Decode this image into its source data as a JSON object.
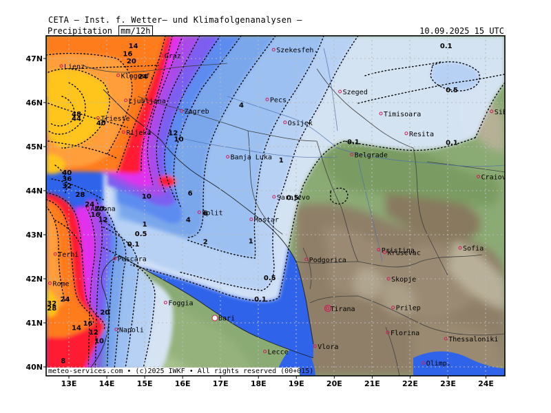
{
  "header": "CETA — Inst. f. Wetter— und Klimafolgenanalysen —",
  "title": {
    "variable": "Precipitation",
    "unit": "mm/12h",
    "valid": "10.09.2025  15 UTC"
  },
  "footer": "meteo-services.com • (c)2025 IWKF • All rights reserved  (00+015)",
  "axes": {
    "lon": [
      "13E",
      "14E",
      "15E",
      "16E",
      "17E",
      "18E",
      "19E",
      "20E",
      "21E",
      "22E",
      "23E",
      "24E"
    ],
    "lat": [
      "47N",
      "46N",
      "45N",
      "44N",
      "43N",
      "42N",
      "41N",
      "40N"
    ]
  },
  "cities": [
    {
      "name": "Szekesfeh.",
      "lon": 18.4,
      "lat": 47.2
    },
    {
      "name": "Szeged",
      "lon": 20.15,
      "lat": 46.25
    },
    {
      "name": "Graz",
      "lon": 15.45,
      "lat": 47.07
    },
    {
      "name": "Lienz",
      "lon": 12.8,
      "lat": 46.83
    },
    {
      "name": "Klagenf.",
      "lon": 14.3,
      "lat": 46.62
    },
    {
      "name": "Ljubljana",
      "lon": 14.5,
      "lat": 46.05
    },
    {
      "name": "Zagreb",
      "lon": 15.97,
      "lat": 45.81
    },
    {
      "name": "Pecs",
      "lon": 18.23,
      "lat": 46.07
    },
    {
      "name": "Timisoara",
      "lon": 21.23,
      "lat": 45.75
    },
    {
      "name": "Sibiu",
      "lon": 24.15,
      "lat": 45.8
    },
    {
      "name": "Trieste",
      "lon": 13.77,
      "lat": 45.65
    },
    {
      "name": "Rijeka",
      "lon": 14.44,
      "lat": 45.33
    },
    {
      "name": "Osijek",
      "lon": 18.7,
      "lat": 45.55
    },
    {
      "name": "Resita",
      "lon": 21.9,
      "lat": 45.3
    },
    {
      "name": "Banja Luka",
      "lon": 17.19,
      "lat": 44.77
    },
    {
      "name": "Belgrade",
      "lon": 20.46,
      "lat": 44.82
    },
    {
      "name": "Craiova",
      "lon": 23.8,
      "lat": 44.32
    },
    {
      "name": "Sarajevo",
      "lon": 18.41,
      "lat": 43.86
    },
    {
      "name": "Ancona",
      "lon": 13.5,
      "lat": 43.6
    },
    {
      "name": "Split",
      "lon": 16.44,
      "lat": 43.51
    },
    {
      "name": "Mostar",
      "lon": 17.81,
      "lat": 43.35
    },
    {
      "name": "Krusevac",
      "lon": 21.33,
      "lat": 42.6
    },
    {
      "name": "Pristina",
      "lon": 21.17,
      "lat": 42.66
    },
    {
      "name": "Sofia",
      "lon": 23.32,
      "lat": 42.7
    },
    {
      "name": "Terni",
      "lon": 12.64,
      "lat": 42.56
    },
    {
      "name": "Pescara",
      "lon": 14.21,
      "lat": 42.46
    },
    {
      "name": "Podgorica",
      "lon": 19.26,
      "lat": 42.44
    },
    {
      "name": "Skopje",
      "lon": 21.43,
      "lat": 42.0
    },
    {
      "name": "Rome",
      "lon": 12.5,
      "lat": 41.9
    },
    {
      "name": "Foggia",
      "lon": 15.55,
      "lat": 41.46
    },
    {
      "name": "Tirana",
      "lon": 19.82,
      "lat": 41.33
    },
    {
      "name": "Prilep",
      "lon": 21.55,
      "lat": 41.35
    },
    {
      "name": "Bari",
      "lon": 16.87,
      "lat": 41.12
    },
    {
      "name": "Napoli",
      "lon": 14.25,
      "lat": 40.85
    },
    {
      "name": "Florina",
      "lon": 21.41,
      "lat": 40.78
    },
    {
      "name": "Thessaloniki",
      "lon": 22.94,
      "lat": 40.64
    },
    {
      "name": "Vlora",
      "lon": 19.49,
      "lat": 40.47
    },
    {
      "name": "Lecce",
      "lon": 18.17,
      "lat": 40.35
    },
    {
      "name": "Olimp.",
      "lon": 22.35,
      "lat": 40.09
    }
  ],
  "contour_labels": [
    {
      "text": "14",
      "lon": 14.7,
      "lat": 47.3
    },
    {
      "text": "16",
      "lon": 14.55,
      "lat": 47.12
    },
    {
      "text": "20",
      "lon": 14.65,
      "lat": 46.95
    },
    {
      "text": "24",
      "lon": 14.95,
      "lat": 46.6
    },
    {
      "text": "48",
      "lon": 13.2,
      "lat": 45.75
    },
    {
      "text": "44",
      "lon": 13.2,
      "lat": 45.65
    },
    {
      "text": "40",
      "lon": 13.85,
      "lat": 45.55
    },
    {
      "text": "12",
      "lon": 15.75,
      "lat": 45.32
    },
    {
      "text": "10",
      "lon": 15.9,
      "lat": 45.18
    },
    {
      "text": "4",
      "lon": 17.55,
      "lat": 45.95
    },
    {
      "text": "1",
      "lon": 18.6,
      "lat": 44.7
    },
    {
      "text": "0.1",
      "lon": 20.5,
      "lat": 45.12
    },
    {
      "text": "0.1",
      "lon": 23.1,
      "lat": 45.1
    },
    {
      "text": "0.1",
      "lon": 22.95,
      "lat": 47.3
    },
    {
      "text": "0.5",
      "lon": 23.1,
      "lat": 46.3
    },
    {
      "text": "40",
      "lon": 12.95,
      "lat": 44.42
    },
    {
      "text": "36",
      "lon": 12.95,
      "lat": 44.28
    },
    {
      "text": "32",
      "lon": 12.95,
      "lat": 44.12
    },
    {
      "text": "28",
      "lon": 13.3,
      "lat": 43.92
    },
    {
      "text": "24",
      "lon": 13.55,
      "lat": 43.7
    },
    {
      "text": "20",
      "lon": 13.8,
      "lat": 43.6
    },
    {
      "text": "16",
      "lon": 13.7,
      "lat": 43.47
    },
    {
      "text": "12",
      "lon": 13.9,
      "lat": 43.35
    },
    {
      "text": "10",
      "lon": 15.05,
      "lat": 43.88
    },
    {
      "text": "6",
      "lon": 16.2,
      "lat": 43.95
    },
    {
      "text": "6",
      "lon": 16.6,
      "lat": 43.5
    },
    {
      "text": "4",
      "lon": 16.15,
      "lat": 43.35
    },
    {
      "text": "1",
      "lon": 15.0,
      "lat": 43.25
    },
    {
      "text": "0.5",
      "lon": 14.9,
      "lat": 43.03
    },
    {
      "text": "0.1",
      "lon": 14.7,
      "lat": 42.8
    },
    {
      "text": "2",
      "lon": 16.6,
      "lat": 42.85
    },
    {
      "text": "1",
      "lon": 17.8,
      "lat": 42.87
    },
    {
      "text": "0.5",
      "lon": 18.9,
      "lat": 43.85
    },
    {
      "text": "0.5",
      "lon": 18.3,
      "lat": 42.03
    },
    {
      "text": "0.1",
      "lon": 18.05,
      "lat": 41.55
    },
    {
      "text": "20",
      "lon": 13.95,
      "lat": 41.25
    },
    {
      "text": "32",
      "lon": 12.55,
      "lat": 41.45
    },
    {
      "text": "28",
      "lon": 12.55,
      "lat": 41.34
    },
    {
      "text": "24",
      "lon": 12.9,
      "lat": 41.55
    },
    {
      "text": "16",
      "lon": 13.5,
      "lat": 41.0
    },
    {
      "text": "14",
      "lon": 13.2,
      "lat": 40.9
    },
    {
      "text": "12",
      "lon": 13.65,
      "lat": 40.8
    },
    {
      "text": "10",
      "lon": 13.8,
      "lat": 40.6
    },
    {
      "text": "8",
      "lon": 12.85,
      "lat": 40.15
    }
  ],
  "colors": {
    "land": "#8bab74",
    "sea": "#2e63ea",
    "p01": "#d7e5f7",
    "p05": "#b7d1f4",
    "p1": "#9bc0f1",
    "p2": "#7aa7ec",
    "p4": "#5d8cf0",
    "p6": "#7c5ef0",
    "p8": "#a94be8",
    "p10": "#e032ee",
    "p14": "#ff1a33",
    "p20": "#ff7b1b",
    "p28": "#ff9e3a",
    "p40": "#ffc51d"
  }
}
